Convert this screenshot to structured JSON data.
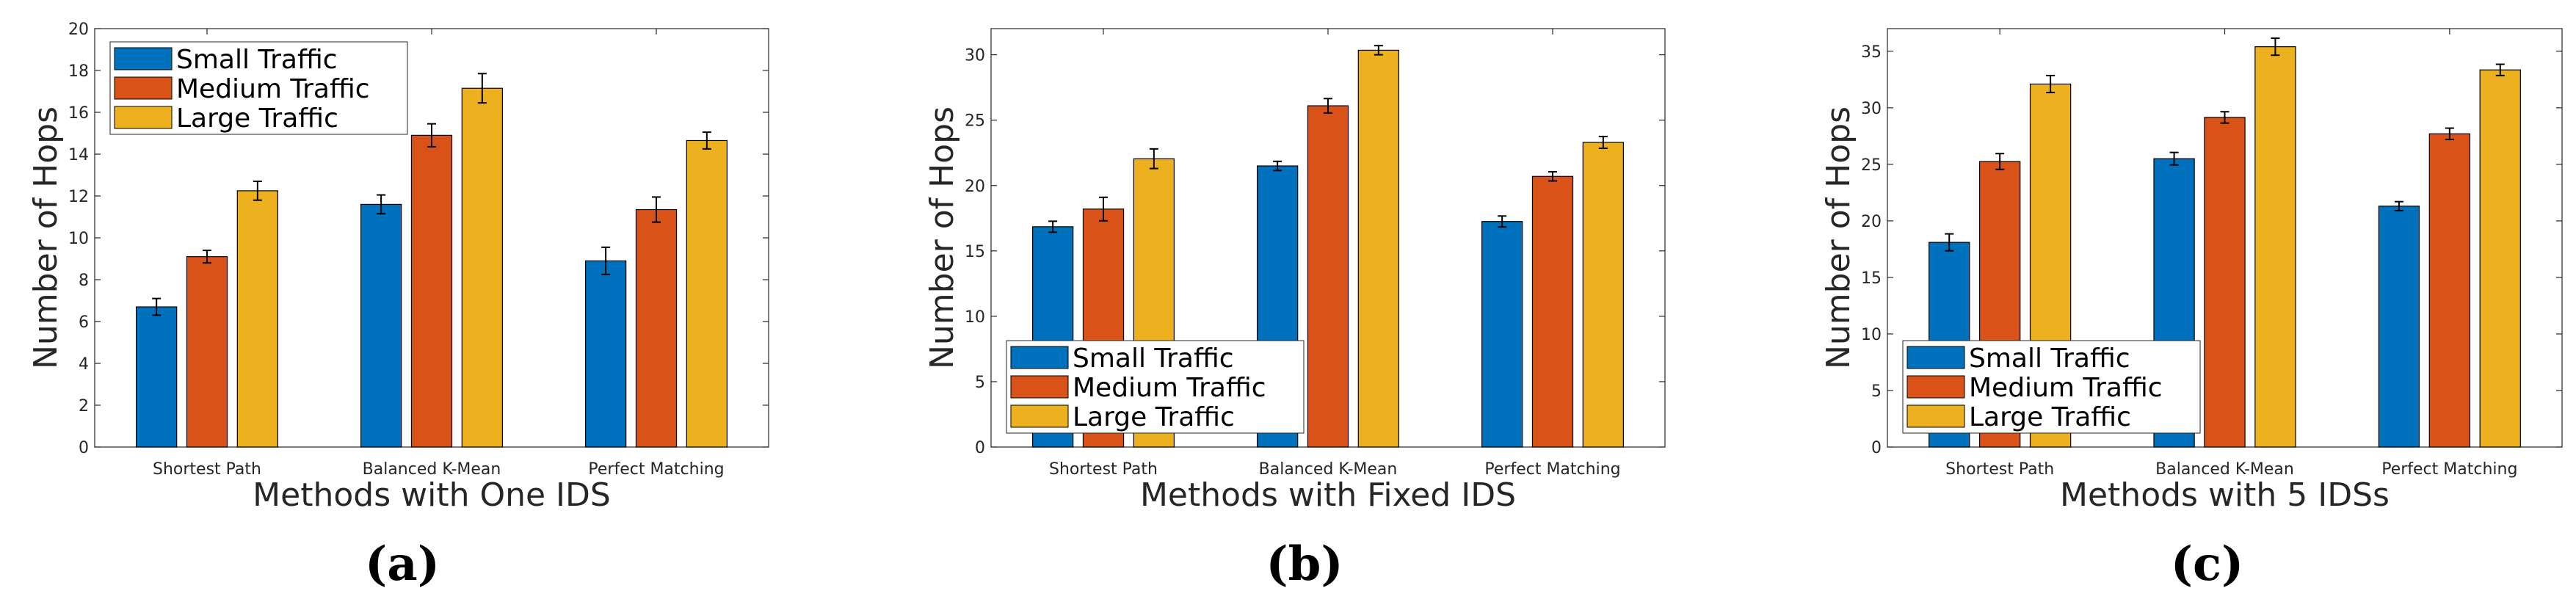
{
  "chart_data": [
    {
      "type": "bar",
      "panel_label": "(a)",
      "xlabel": "Methods with One IDS",
      "ylabel": "Number of Hops",
      "categories": [
        "Shortest Path",
        "Balanced K-Mean",
        "Perfect Matching"
      ],
      "ylim": [
        0,
        20
      ],
      "yticks": [
        0,
        2,
        4,
        6,
        8,
        10,
        12,
        14,
        16,
        18,
        20
      ],
      "legend_position": "top-left",
      "series": [
        {
          "name": "Small Traffic",
          "color": "#0072BD",
          "values": [
            6.7,
            11.6,
            8.9
          ],
          "errors": [
            0.4,
            0.45,
            0.65
          ]
        },
        {
          "name": "Medium Traffic",
          "color": "#D95319",
          "values": [
            9.1,
            14.9,
            11.35
          ],
          "errors": [
            0.3,
            0.55,
            0.6
          ]
        },
        {
          "name": "Large Traffic",
          "color": "#EDB120",
          "values": [
            12.25,
            17.15,
            14.65
          ],
          "errors": [
            0.45,
            0.7,
            0.4
          ]
        }
      ]
    },
    {
      "type": "bar",
      "panel_label": "(b)",
      "xlabel": "Methods with Fixed IDS",
      "ylabel": "Number of Hops",
      "categories": [
        "Shortest Path",
        "Balanced K-Mean",
        "Perfect Matching"
      ],
      "ylim": [
        0,
        32
      ],
      "yticks": [
        0,
        5,
        10,
        15,
        20,
        25,
        30
      ],
      "legend_position": "bottom-left",
      "series": [
        {
          "name": "Small Traffic",
          "color": "#0072BD",
          "values": [
            16.85,
            21.5,
            17.25
          ],
          "errors": [
            0.42,
            0.35,
            0.42
          ]
        },
        {
          "name": "Medium Traffic",
          "color": "#D95319",
          "values": [
            18.2,
            26.1,
            20.7
          ],
          "errors": [
            0.9,
            0.55,
            0.35
          ]
        },
        {
          "name": "Large Traffic",
          "color": "#EDB120",
          "values": [
            22.05,
            30.35,
            23.3
          ],
          "errors": [
            0.75,
            0.35,
            0.45
          ]
        }
      ]
    },
    {
      "type": "bar",
      "panel_label": "(c)",
      "xlabel": "Methods with 5 IDSs",
      "ylabel": "Number of Hops",
      "categories": [
        "Shortest Path",
        "Balanced K-Mean",
        "Perfect Matching"
      ],
      "ylim": [
        0,
        37
      ],
      "yticks": [
        0,
        5,
        10,
        15,
        20,
        25,
        30,
        35
      ],
      "legend_position": "bottom-left",
      "series": [
        {
          "name": "Small Traffic",
          "color": "#0072BD",
          "values": [
            18.1,
            25.5,
            21.3
          ],
          "errors": [
            0.75,
            0.55,
            0.4
          ]
        },
        {
          "name": "Medium Traffic",
          "color": "#D95319",
          "values": [
            25.25,
            29.15,
            27.7
          ],
          "errors": [
            0.7,
            0.5,
            0.5
          ]
        },
        {
          "name": "Large Traffic",
          "color": "#EDB120",
          "values": [
            32.1,
            35.4,
            33.35
          ],
          "errors": [
            0.75,
            0.75,
            0.5
          ]
        }
      ]
    }
  ]
}
